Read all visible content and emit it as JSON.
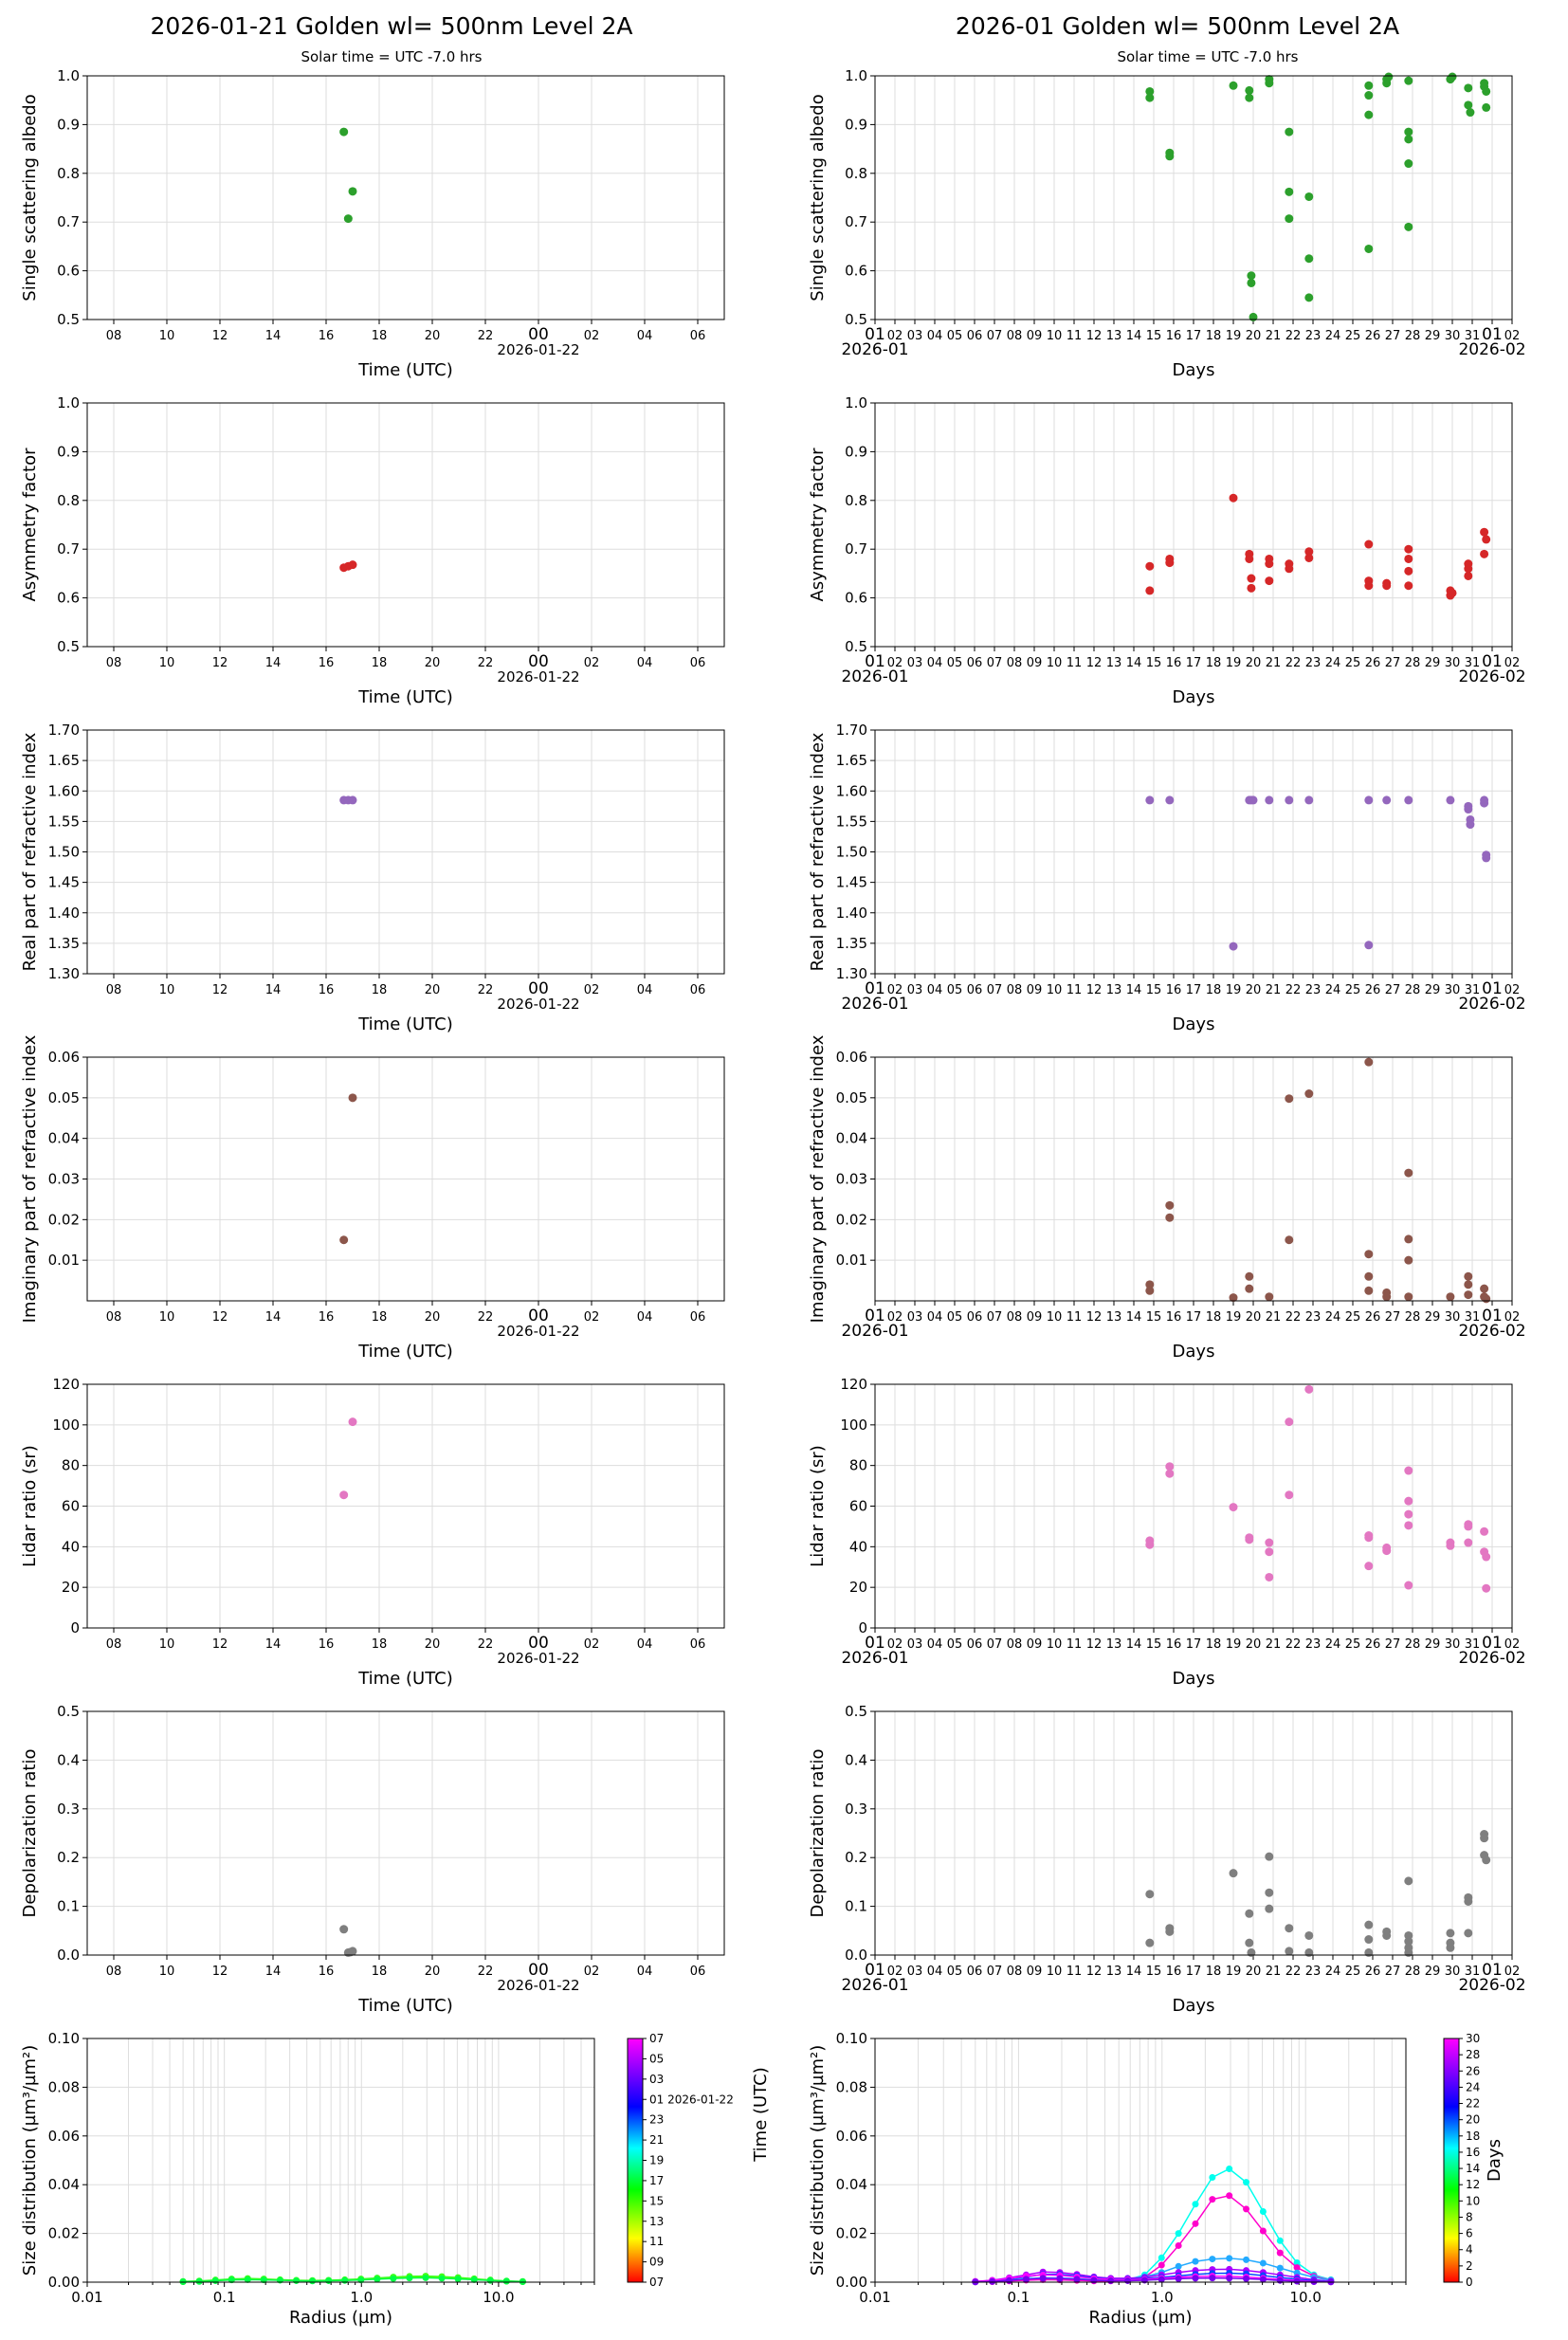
{
  "left_title": "2026-01-21  Golden  wl= 500nm  Level 2A",
  "right_title": "2026-01  Golden  wl= 500nm  Level 2A",
  "subtitle": "Solar time = UTC -7.0 hrs",
  "time_xlabel": "Time (UTC)",
  "days_xlabel": "Days",
  "time_ticks": [
    "08",
    "10",
    "12",
    "14",
    "16",
    "18",
    "20",
    "22",
    "00",
    "02",
    "04",
    "06"
  ],
  "time_date": "2026-01-22",
  "day_ticks": [
    "01",
    "02",
    "03",
    "04",
    "05",
    "06",
    "07",
    "08",
    "09",
    "10",
    "11",
    "12",
    "13",
    "14",
    "15",
    "16",
    "17",
    "18",
    "19",
    "20",
    "21",
    "22",
    "23",
    "24",
    "25",
    "26",
    "27",
    "28",
    "29",
    "30",
    "31",
    "01",
    "02"
  ],
  "day_start": "2026-01",
  "day_end": "2026-02",
  "size_xlabel": "Radius (µm)",
  "size_ylabel": "Size distribution (µm³/µm²)",
  "size_xticks": [
    "0.01",
    "0.1",
    "1.0",
    "10.0"
  ],
  "left_cbar_ticks": [
    "07",
    "05",
    "03",
    "01 2026-01-22",
    "23",
    "21",
    "19",
    "17",
    "15",
    "13",
    "11",
    "09",
    "07"
  ],
  "left_cbar_side_label": "Time (UTC)",
  "right_cbar_ticks": [
    "30",
    "28",
    "26",
    "24",
    "22",
    "20",
    "18",
    "16",
    "14",
    "12",
    "10",
    "8",
    "6",
    "4",
    "2",
    "0"
  ],
  "right_cbar_label": "Days",
  "colors": {
    "ssa": "#2ca02c",
    "asym": "#d62728",
    "real": "#9467bd",
    "imag": "#8c564b",
    "lidar": "#e377c2",
    "depol": "#7f7f7f"
  },
  "chart_data": [
    {
      "id": "ssa_day",
      "type": "scatter",
      "ylabel": "Single scattering albedo",
      "xlabel": "Time (UTC)",
      "xlim": [
        "2026-01-21 07:00",
        "2026-01-22 07:00"
      ],
      "ylim": [
        0.5,
        1.0
      ],
      "yticks": [
        0.5,
        0.6,
        0.7,
        0.8,
        0.9,
        1.0
      ],
      "x": [
        "2026-01-21 16:40",
        "2026-01-21 16:50",
        "2026-01-21 17:00"
      ],
      "y": [
        0.885,
        0.707,
        0.763
      ]
    },
    {
      "id": "ssa_month",
      "type": "scatter",
      "ylabel": "Single scattering albedo",
      "xlabel": "Days",
      "xlim": [
        1,
        33
      ],
      "ylim": [
        0.5,
        1.0
      ],
      "yticks": [
        0.5,
        0.6,
        0.7,
        0.8,
        0.9,
        1.0
      ],
      "x": [
        14.8,
        14.8,
        15.8,
        15.8,
        19.0,
        19.8,
        19.8,
        19.9,
        19.9,
        20.0,
        20.8,
        20.8,
        21.8,
        21.8,
        21.8,
        22.8,
        22.8,
        22.8,
        25.8,
        25.8,
        25.8,
        25.8,
        26.7,
        26.7,
        26.8,
        27.8,
        27.8,
        27.8,
        27.8,
        27.8,
        29.9,
        30.0,
        30.8,
        30.8,
        30.9,
        31.6,
        31.6,
        31.7,
        31.7
      ],
      "y": [
        0.955,
        0.968,
        0.835,
        0.842,
        0.98,
        0.97,
        0.955,
        0.59,
        0.575,
        0.505,
        0.985,
        0.993,
        0.885,
        0.762,
        0.707,
        0.752,
        0.625,
        0.545,
        0.98,
        0.96,
        0.92,
        0.645,
        0.985,
        0.993,
        0.998,
        0.99,
        0.885,
        0.87,
        0.82,
        0.69,
        0.993,
        0.998,
        0.975,
        0.94,
        0.925,
        0.985,
        0.978,
        0.968,
        0.935
      ]
    },
    {
      "id": "asym_day",
      "type": "scatter",
      "ylabel": "Asymmetry factor",
      "xlabel": "Time (UTC)",
      "xlim": [
        "2026-01-21 07:00",
        "2026-01-22 07:00"
      ],
      "ylim": [
        0.5,
        1.0
      ],
      "yticks": [
        0.5,
        0.6,
        0.7,
        0.8,
        0.9,
        1.0
      ],
      "x": [
        "2026-01-21 16:40",
        "2026-01-21 16:50",
        "2026-01-21 17:00"
      ],
      "y": [
        0.662,
        0.665,
        0.668
      ]
    },
    {
      "id": "asym_month",
      "type": "scatter",
      "ylabel": "Asymmetry factor",
      "xlabel": "Days",
      "xlim": [
        1,
        33
      ],
      "ylim": [
        0.5,
        1.0
      ],
      "yticks": [
        0.5,
        0.6,
        0.7,
        0.8,
        0.9,
        1.0
      ],
      "x": [
        14.8,
        14.8,
        15.8,
        15.8,
        19.0,
        19.8,
        19.8,
        19.9,
        19.9,
        20.8,
        20.8,
        20.8,
        21.8,
        21.8,
        22.8,
        22.8,
        25.8,
        25.8,
        25.8,
        26.7,
        26.7,
        27.8,
        27.8,
        27.8,
        27.8,
        29.9,
        29.9,
        30.0,
        30.8,
        30.8,
        30.8,
        31.6,
        31.6,
        31.7
      ],
      "y": [
        0.665,
        0.615,
        0.68,
        0.672,
        0.805,
        0.69,
        0.68,
        0.64,
        0.62,
        0.68,
        0.67,
        0.635,
        0.67,
        0.66,
        0.695,
        0.682,
        0.71,
        0.635,
        0.625,
        0.63,
        0.625,
        0.7,
        0.68,
        0.655,
        0.625,
        0.615,
        0.605,
        0.61,
        0.67,
        0.66,
        0.645,
        0.735,
        0.69,
        0.72
      ]
    },
    {
      "id": "real_day",
      "type": "scatter",
      "ylabel": "Real part of refractive index",
      "xlabel": "Time (UTC)",
      "xlim": [
        "2026-01-21 07:00",
        "2026-01-22 07:00"
      ],
      "ylim": [
        1.3,
        1.7
      ],
      "yticks": [
        1.3,
        1.35,
        1.4,
        1.45,
        1.5,
        1.55,
        1.6,
        1.65,
        1.7
      ],
      "x": [
        "2026-01-21 16:40",
        "2026-01-21 16:50",
        "2026-01-21 17:00"
      ],
      "y": [
        1.585,
        1.585,
        1.585
      ]
    },
    {
      "id": "real_month",
      "type": "scatter",
      "ylabel": "Real part of refractive index",
      "xlabel": "Days",
      "xlim": [
        1,
        33
      ],
      "ylim": [
        1.3,
        1.7
      ],
      "yticks": [
        1.3,
        1.35,
        1.4,
        1.45,
        1.5,
        1.55,
        1.6,
        1.65,
        1.7
      ],
      "x": [
        14.8,
        15.8,
        19.0,
        19.8,
        19.9,
        20.0,
        20.8,
        21.8,
        22.8,
        25.8,
        25.8,
        26.7,
        27.8,
        29.9,
        30.8,
        30.8,
        30.9,
        30.9,
        31.6,
        31.6,
        31.7,
        31.7
      ],
      "y": [
        1.585,
        1.585,
        1.345,
        1.585,
        1.585,
        1.585,
        1.585,
        1.585,
        1.585,
        1.585,
        1.347,
        1.585,
        1.585,
        1.585,
        1.575,
        1.57,
        1.553,
        1.545,
        1.585,
        1.58,
        1.495,
        1.49
      ]
    },
    {
      "id": "imag_day",
      "type": "scatter",
      "ylabel": "Imaginary part of refractive index",
      "xlabel": "Time (UTC)",
      "xlim": [
        "2026-01-21 07:00",
        "2026-01-22 07:00"
      ],
      "ylim": [
        0.0,
        0.06
      ],
      "yticks": [
        0.01,
        0.02,
        0.03,
        0.04,
        0.05,
        0.06
      ],
      "x": [
        "2026-01-21 16:40",
        "2026-01-21 17:00"
      ],
      "y": [
        0.015,
        0.05
      ]
    },
    {
      "id": "imag_month",
      "type": "scatter",
      "ylabel": "Imaginary part of refractive index",
      "xlabel": "Days",
      "xlim": [
        1,
        33
      ],
      "ylim": [
        0.0,
        0.06
      ],
      "yticks": [
        0.01,
        0.02,
        0.03,
        0.04,
        0.05,
        0.06
      ],
      "x": [
        14.8,
        14.8,
        15.8,
        15.8,
        19.0,
        19.8,
        19.8,
        20.8,
        21.8,
        21.8,
        22.8,
        25.8,
        25.8,
        25.8,
        25.8,
        26.7,
        26.7,
        27.8,
        27.8,
        27.8,
        27.8,
        29.9,
        30.8,
        30.8,
        30.8,
        31.6,
        31.6,
        31.7
      ],
      "y": [
        0.004,
        0.0025,
        0.0235,
        0.0205,
        0.0008,
        0.006,
        0.003,
        0.001,
        0.0498,
        0.015,
        0.051,
        0.0588,
        0.0115,
        0.006,
        0.0025,
        0.002,
        0.001,
        0.0315,
        0.0152,
        0.01,
        0.001,
        0.001,
        0.006,
        0.004,
        0.0015,
        0.003,
        0.001,
        0.0005
      ]
    },
    {
      "id": "lidar_day",
      "type": "scatter",
      "ylabel": "Lidar ratio (sr)",
      "xlabel": "Time (UTC)",
      "xlim": [
        "2026-01-21 07:00",
        "2026-01-22 07:00"
      ],
      "ylim": [
        0,
        120
      ],
      "yticks": [
        0,
        20,
        40,
        60,
        80,
        100,
        120
      ],
      "x": [
        "2026-01-21 16:40",
        "2026-01-21 17:00"
      ],
      "y": [
        65.5,
        101.5
      ]
    },
    {
      "id": "lidar_month",
      "type": "scatter",
      "ylabel": "Lidar ratio (sr)",
      "xlabel": "Days",
      "xlim": [
        1,
        33
      ],
      "ylim": [
        0,
        120
      ],
      "yticks": [
        0,
        20,
        40,
        60,
        80,
        100,
        120
      ],
      "x": [
        14.8,
        14.8,
        15.8,
        15.8,
        19.0,
        19.8,
        19.8,
        20.8,
        20.8,
        20.8,
        21.8,
        21.8,
        22.8,
        25.8,
        25.8,
        25.8,
        26.7,
        26.7,
        27.8,
        27.8,
        27.8,
        27.8,
        27.8,
        29.9,
        29.9,
        30.8,
        30.8,
        30.8,
        31.6,
        31.6,
        31.7,
        31.7
      ],
      "y": [
        43,
        41,
        79.5,
        76,
        59.5,
        44.5,
        43.5,
        42,
        37.5,
        25,
        101.5,
        65.5,
        117.5,
        45.5,
        44.5,
        30.5,
        39.5,
        38,
        77.5,
        62.5,
        56,
        50.5,
        21,
        42,
        40.5,
        51,
        50,
        42,
        47.5,
        37.5,
        35,
        19.5
      ]
    },
    {
      "id": "depol_day",
      "type": "scatter",
      "ylabel": "Depolarization ratio",
      "xlabel": "Time (UTC)",
      "xlim": [
        "2026-01-21 07:00",
        "2026-01-22 07:00"
      ],
      "ylim": [
        0.0,
        0.5
      ],
      "yticks": [
        0.0,
        0.1,
        0.2,
        0.3,
        0.4,
        0.5
      ],
      "x": [
        "2026-01-21 16:40",
        "2026-01-21 16:50",
        "2026-01-21 17:00",
        "2026-01-21 16:55"
      ],
      "y": [
        0.053,
        0.005,
        0.008,
        0.006
      ]
    },
    {
      "id": "depol_month",
      "type": "scatter",
      "ylabel": "Depolarization ratio",
      "xlabel": "Days",
      "xlim": [
        1,
        33
      ],
      "ylim": [
        0.0,
        0.5
      ],
      "yticks": [
        0.0,
        0.1,
        0.2,
        0.3,
        0.4,
        0.5
      ],
      "x": [
        14.8,
        14.8,
        15.8,
        15.8,
        19.0,
        19.8,
        19.8,
        19.9,
        20.8,
        20.8,
        20.8,
        21.8,
        21.8,
        22.8,
        22.8,
        25.8,
        25.8,
        25.8,
        26.7,
        26.7,
        27.8,
        27.8,
        27.8,
        27.8,
        27.8,
        29.9,
        29.9,
        29.9,
        30.8,
        30.8,
        30.8,
        31.6,
        31.6,
        31.6,
        31.7
      ],
      "y": [
        0.125,
        0.025,
        0.055,
        0.048,
        0.168,
        0.085,
        0.025,
        0.005,
        0.202,
        0.128,
        0.095,
        0.055,
        0.008,
        0.04,
        0.005,
        0.062,
        0.032,
        0.005,
        0.048,
        0.04,
        0.152,
        0.04,
        0.028,
        0.015,
        0.005,
        0.045,
        0.025,
        0.015,
        0.118,
        0.11,
        0.045,
        0.248,
        0.24,
        0.205,
        0.195
      ]
    },
    {
      "id": "size_day",
      "type": "line",
      "xlabel": "Radius (µm)",
      "ylabel": "Size distribution (µm³/µm²)",
      "xscale": "log",
      "xlim": [
        0.01,
        50
      ],
      "ylim": [
        0.0,
        0.1
      ],
      "yticks": [
        0.0,
        0.02,
        0.04,
        0.06,
        0.08,
        0.1
      ],
      "x": [
        0.05,
        0.0656,
        0.0861,
        0.113,
        0.148,
        0.194,
        0.255,
        0.335,
        0.439,
        0.576,
        0.756,
        0.992,
        1.302,
        1.708,
        2.241,
        2.94,
        3.857,
        5.061,
        6.641,
        8.713,
        11.432,
        15.0
      ],
      "series": [
        {
          "color": "#22ff22",
          "values": [
            0.0003,
            0.0005,
            0.0009,
            0.0013,
            0.0015,
            0.0013,
            0.001,
            0.0008,
            0.0007,
            0.0008,
            0.001,
            0.0013,
            0.0017,
            0.0021,
            0.0024,
            0.0025,
            0.0023,
            0.0019,
            0.0014,
            0.0009,
            0.0005,
            0.0003
          ]
        },
        {
          "color": "#66ff00",
          "values": [
            0.0002,
            0.0004,
            0.0007,
            0.001,
            0.0012,
            0.0011,
            0.0009,
            0.0007,
            0.0006,
            0.0007,
            0.0008,
            0.0011,
            0.0014,
            0.0018,
            0.0021,
            0.0022,
            0.002,
            0.0016,
            0.0012,
            0.0008,
            0.0004,
            0.0002
          ]
        },
        {
          "color": "#00ff44",
          "values": [
            0.0002,
            0.0003,
            0.0006,
            0.0009,
            0.001,
            0.0009,
            0.0008,
            0.0006,
            0.0005,
            0.0006,
            0.0007,
            0.0009,
            0.0012,
            0.0015,
            0.0017,
            0.0018,
            0.0016,
            0.0013,
            0.001,
            0.0007,
            0.0004,
            0.0002
          ]
        }
      ]
    },
    {
      "id": "size_month",
      "type": "line",
      "xlabel": "Radius (µm)",
      "ylabel": "Size distribution (µm³/µm²)",
      "xscale": "log",
      "xlim": [
        0.01,
        50
      ],
      "ylim": [
        0.0,
        0.1
      ],
      "yticks": [
        0.0,
        0.02,
        0.04,
        0.06,
        0.08,
        0.1
      ],
      "x": [
        0.05,
        0.0656,
        0.0861,
        0.113,
        0.148,
        0.194,
        0.255,
        0.335,
        0.439,
        0.576,
        0.756,
        0.992,
        1.302,
        1.708,
        2.241,
        2.94,
        3.857,
        5.061,
        6.641,
        8.713,
        11.432,
        15.0
      ],
      "series": [
        {
          "color": "#00ffee",
          "values": [
            0.0001,
            0.0003,
            0.0006,
            0.001,
            0.0012,
            0.0011,
            0.0008,
            0.0006,
            0.0006,
            0.001,
            0.003,
            0.01,
            0.02,
            0.032,
            0.043,
            0.0465,
            0.041,
            0.029,
            0.017,
            0.008,
            0.003,
            0.001
          ]
        },
        {
          "color": "#ff00cc",
          "values": [
            0.0001,
            0.0002,
            0.0005,
            0.0008,
            0.001,
            0.0009,
            0.0007,
            0.0005,
            0.0005,
            0.0008,
            0.002,
            0.007,
            0.015,
            0.024,
            0.034,
            0.0355,
            0.03,
            0.021,
            0.012,
            0.006,
            0.0025,
            0.0008
          ]
        },
        {
          "color": "#22aaff",
          "values": [
            0.0002,
            0.0004,
            0.0008,
            0.0014,
            0.0018,
            0.0017,
            0.0014,
            0.001,
            0.0009,
            0.0012,
            0.0022,
            0.004,
            0.0065,
            0.0085,
            0.0095,
            0.0098,
            0.0092,
            0.0078,
            0.0058,
            0.0038,
            0.002,
            0.0008
          ]
        },
        {
          "color": "#aa00ff",
          "values": [
            0.0003,
            0.0008,
            0.0018,
            0.003,
            0.0042,
            0.004,
            0.0032,
            0.0022,
            0.0016,
            0.0016,
            0.002,
            0.003,
            0.004,
            0.0048,
            0.0052,
            0.0053,
            0.0048,
            0.004,
            0.003,
            0.002,
            0.001,
            0.0004
          ]
        },
        {
          "color": "#0044ff",
          "values": [
            0.0002,
            0.0005,
            0.0012,
            0.0022,
            0.0032,
            0.0032,
            0.0026,
            0.0018,
            0.0012,
            0.0012,
            0.0015,
            0.002,
            0.0026,
            0.0032,
            0.0036,
            0.0037,
            0.0034,
            0.0027,
            0.0019,
            0.0012,
            0.0006,
            0.0002
          ]
        },
        {
          "color": "#ff00ff",
          "values": [
            0.0003,
            0.0007,
            0.0015,
            0.0025,
            0.003,
            0.0028,
            0.0022,
            0.0015,
            0.0011,
            0.001,
            0.0012,
            0.0016,
            0.002,
            0.0023,
            0.0025,
            0.0024,
            0.0021,
            0.0016,
            0.0011,
            0.0007,
            0.0003,
            0.0001
          ]
        },
        {
          "color": "#7700ee",
          "values": [
            0.0001,
            0.0003,
            0.0007,
            0.0012,
            0.0016,
            0.0015,
            0.0012,
            0.0008,
            0.0006,
            0.0006,
            0.0008,
            0.0011,
            0.0014,
            0.0016,
            0.0017,
            0.0016,
            0.0014,
            0.0011,
            0.0007,
            0.0004,
            0.0002,
            0.0001
          ]
        }
      ]
    }
  ]
}
